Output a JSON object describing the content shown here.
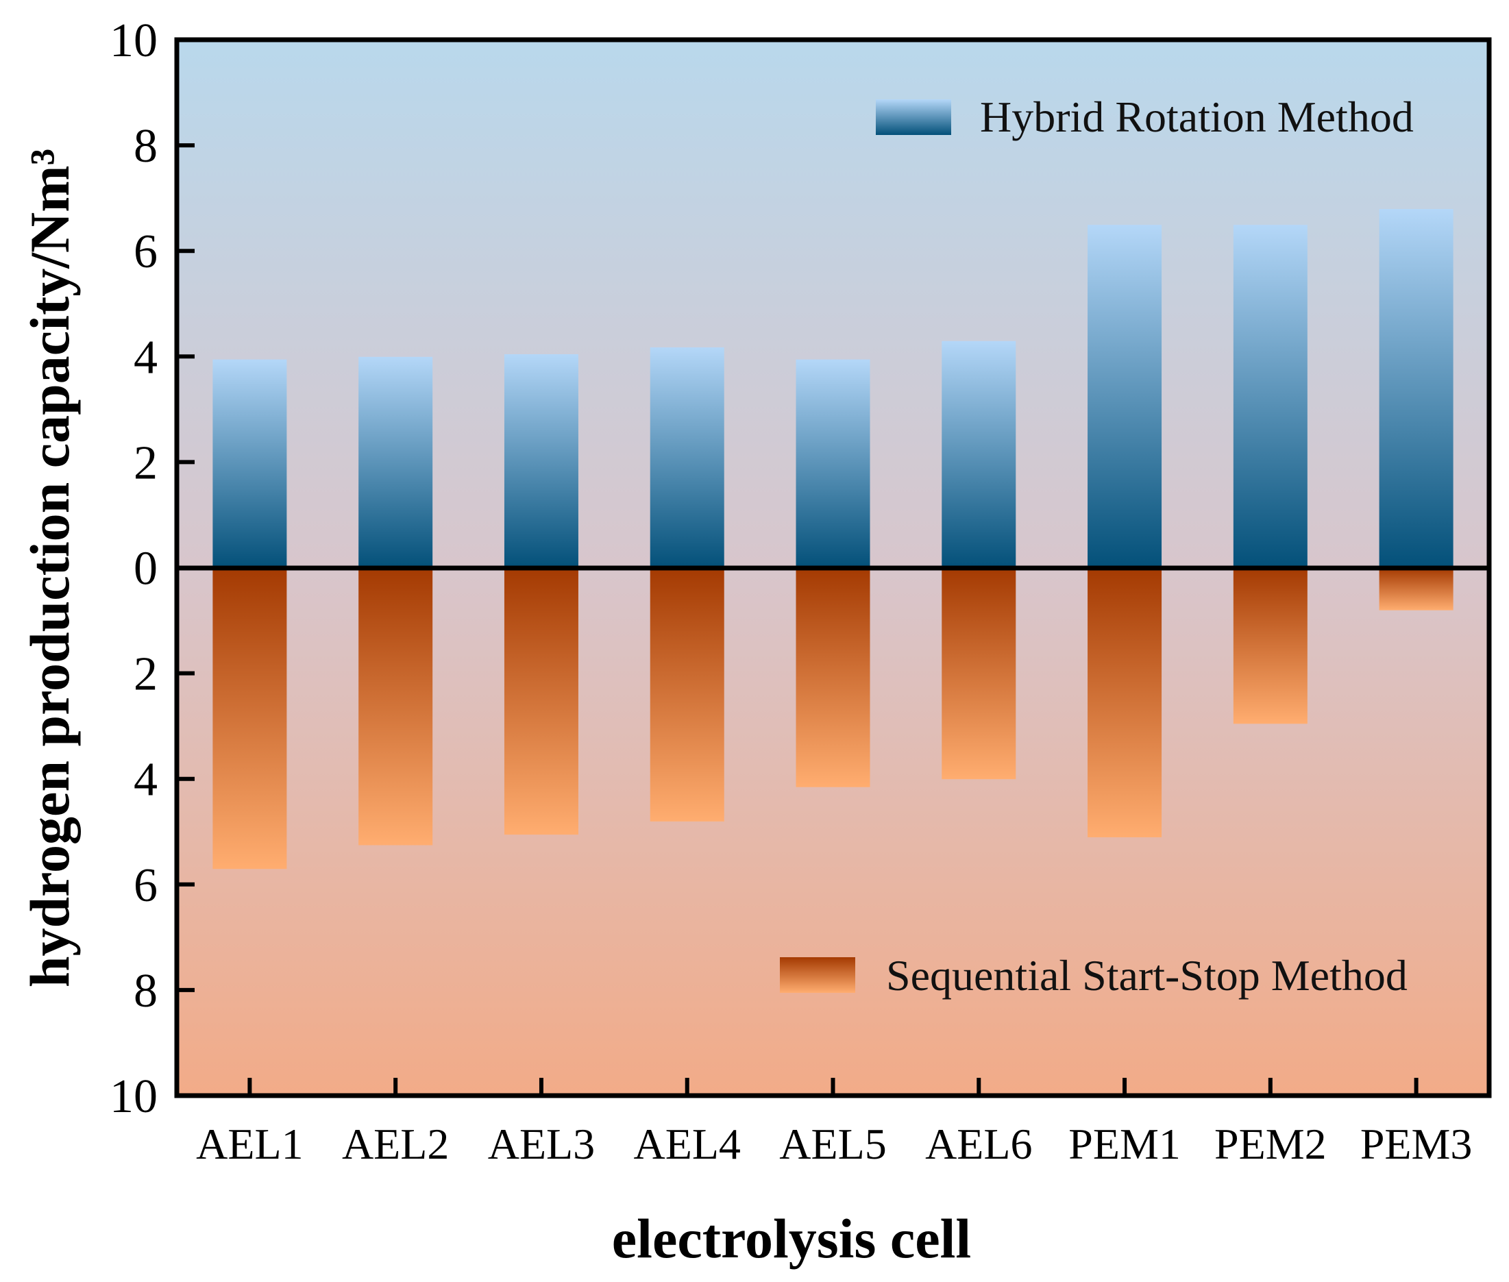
{
  "chart_data": {
    "type": "bar",
    "title": "",
    "xlabel": "electrolysis cell",
    "ylabel": "hydrogen production capacity/Nm³",
    "ylim": [
      -10,
      10
    ],
    "yticks": [
      10,
      8,
      6,
      4,
      2,
      0,
      2,
      4,
      6,
      8,
      10
    ],
    "categories": [
      "AEL1",
      "AEL2",
      "AEL3",
      "AEL4",
      "AEL5",
      "AEL6",
      "PEM1",
      "PEM2",
      "PEM3"
    ],
    "series": [
      {
        "name": "Hybrid Rotation Method",
        "direction": "up",
        "values": [
          3.95,
          4.0,
          4.05,
          4.18,
          3.95,
          4.3,
          6.5,
          6.5,
          6.8
        ]
      },
      {
        "name": "Sequential Start-Stop Method",
        "direction": "down",
        "values": [
          5.7,
          5.25,
          5.05,
          4.8,
          4.15,
          4.0,
          5.1,
          2.95,
          0.8
        ]
      }
    ],
    "legend": [
      "Hybrid Rotation Method",
      "Sequential Start-Stop Method"
    ],
    "colors": {
      "hybrid_light": "#b4d7f8",
      "hybrid_dark": "#035079",
      "sequential_dark": "#a43a02",
      "sequential_light": "#ffad70",
      "bg_top": "#b9d8ec",
      "bg_bottom": "#f2ab88"
    }
  }
}
